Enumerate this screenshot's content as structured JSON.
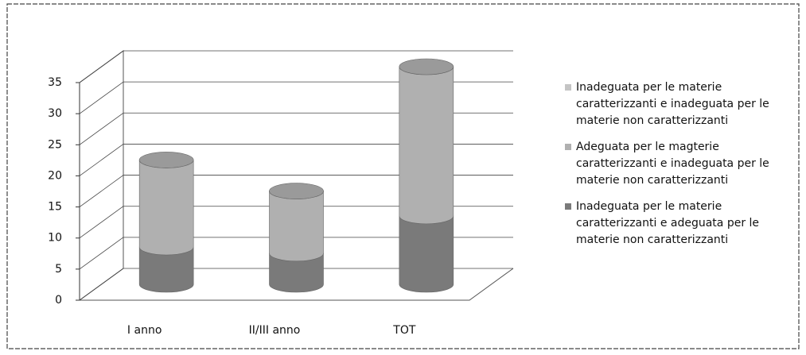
{
  "chart_data": {
    "type": "bar3d-cylinder-stacked",
    "categories": [
      "I anno",
      "II/III anno",
      "TOT"
    ],
    "series": [
      {
        "name": "Inadeguata per le materie caratterizzanti e inadeguata per le materie non caratterizzanti",
        "color": "#c4c4c4",
        "values": [
          0,
          0,
          0
        ]
      },
      {
        "name": "Adeguata per le magterie caratterizzanti e inadeguata per le materie non caratterizzanti",
        "color": "#b0b0b0",
        "values": [
          14,
          10,
          24
        ]
      },
      {
        "name": "Inadeguata per le materie caratterizzanti e adeguata per le materie non caratterizzanti",
        "color": "#7a7a7a",
        "values": [
          6,
          5,
          11
        ]
      }
    ],
    "ylim": [
      0,
      35
    ],
    "yticks": [
      0,
      5,
      10,
      15,
      20,
      25,
      30,
      35
    ],
    "grid": true,
    "legend": "right"
  }
}
